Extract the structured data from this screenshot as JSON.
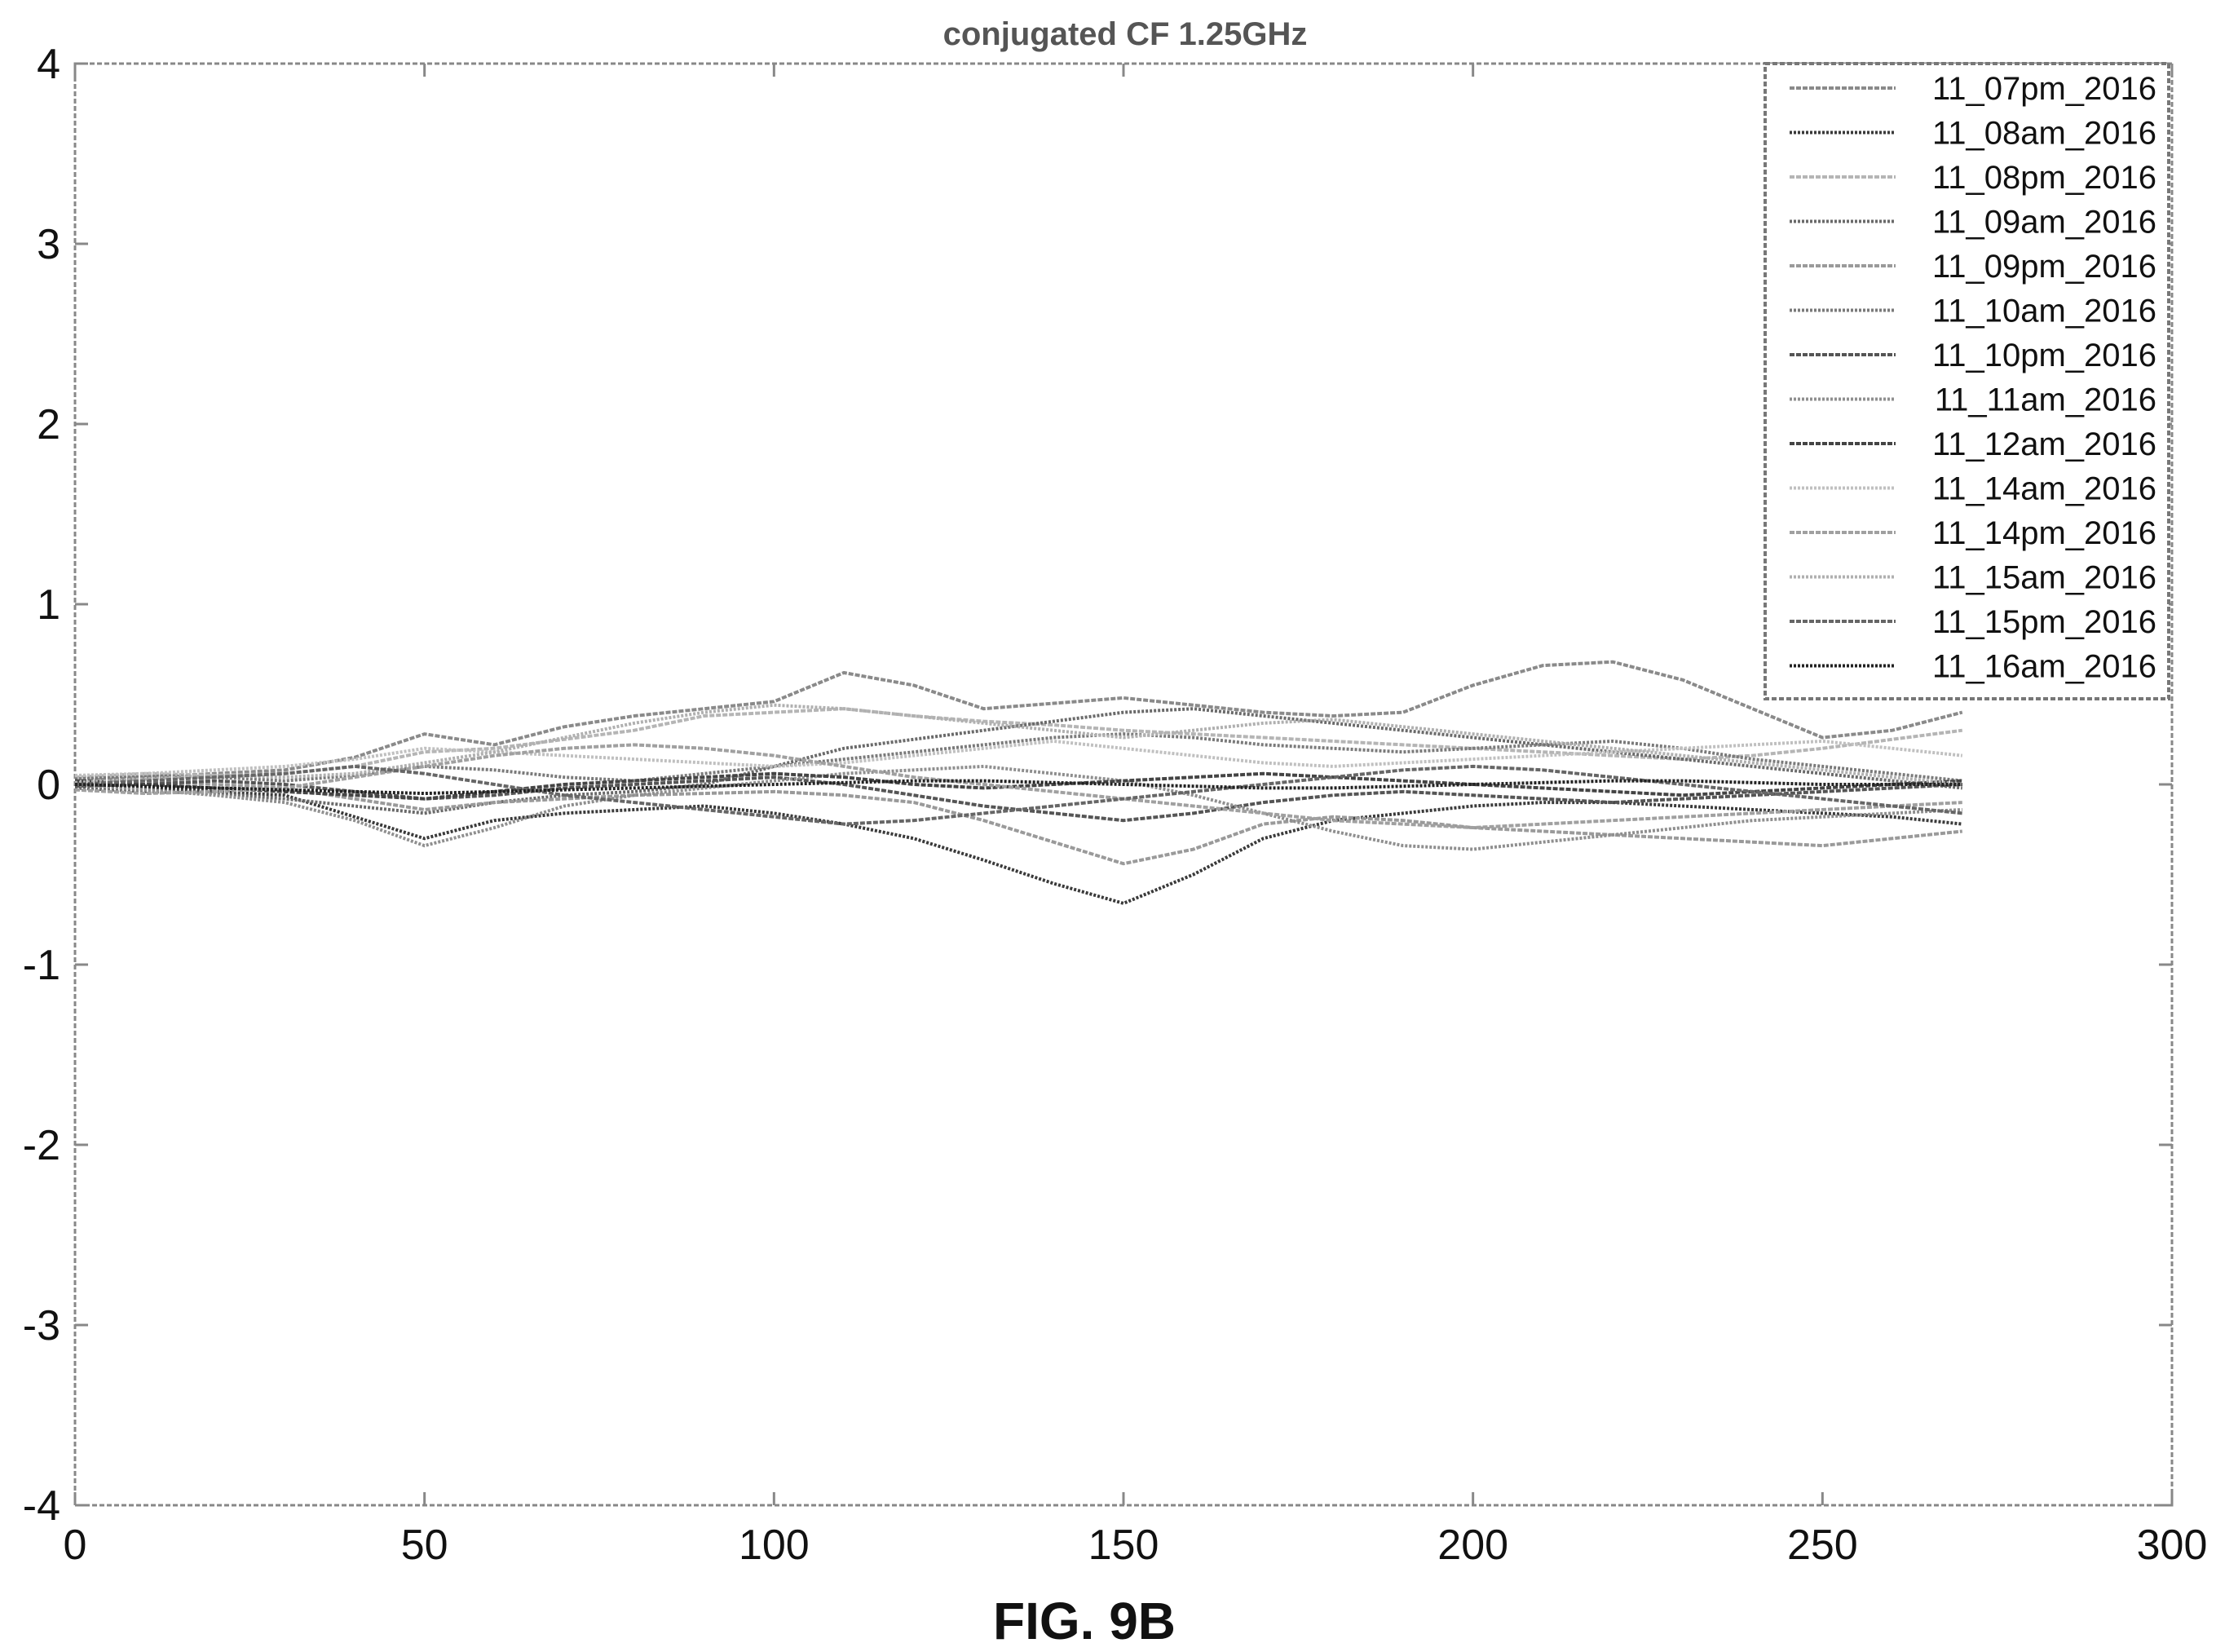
{
  "figure_label": "FIG. 9B",
  "chart_data": {
    "type": "line",
    "title": "conjugated CF 1.25GHz",
    "xlabel": "",
    "ylabel": "",
    "xlim": [
      0,
      300
    ],
    "ylim": [
      -4,
      4
    ],
    "xticks": [
      "0",
      "50",
      "100",
      "150",
      "200",
      "250",
      "300"
    ],
    "yticks": [
      "4",
      "3",
      "2",
      "1",
      "0",
      "-1",
      "-2",
      "-3",
      "-4"
    ],
    "grid": false,
    "legend_position": "top-right",
    "x": [
      0,
      10,
      20,
      30,
      40,
      50,
      60,
      70,
      80,
      90,
      100,
      110,
      120,
      130,
      140,
      150,
      160,
      170,
      180,
      190,
      200,
      210,
      220,
      230,
      240,
      250,
      260,
      270
    ],
    "series": [
      {
        "name": "11_07pm_2016",
        "color": "#8a8a8a",
        "values": [
          0.02,
          0.04,
          0.06,
          0.08,
          0.15,
          0.28,
          0.22,
          0.32,
          0.38,
          0.42,
          0.46,
          0.62,
          0.55,
          0.42,
          0.45,
          0.48,
          0.44,
          0.4,
          0.38,
          0.4,
          0.55,
          0.66,
          0.68,
          0.58,
          0.42,
          0.26,
          0.3,
          0.4
        ]
      },
      {
        "name": "11_08am_2016",
        "color": "#3a3a3a",
        "values": [
          0.0,
          -0.02,
          -0.04,
          -0.06,
          -0.18,
          -0.3,
          -0.2,
          -0.16,
          -0.14,
          -0.12,
          -0.16,
          -0.22,
          -0.3,
          -0.42,
          -0.55,
          -0.66,
          -0.5,
          -0.3,
          -0.2,
          -0.16,
          -0.12,
          -0.1,
          -0.1,
          -0.12,
          -0.14,
          -0.16,
          -0.18,
          -0.22
        ]
      },
      {
        "name": "11_08pm_2016",
        "color": "#b5b5b5",
        "values": [
          0.04,
          0.06,
          0.05,
          0.06,
          0.1,
          0.18,
          0.2,
          0.25,
          0.3,
          0.38,
          0.4,
          0.42,
          0.38,
          0.35,
          0.33,
          0.3,
          0.28,
          0.26,
          0.24,
          0.22,
          0.2,
          0.18,
          0.16,
          0.14,
          0.16,
          0.2,
          0.25,
          0.3
        ]
      },
      {
        "name": "11_09am_2016",
        "color": "#6a6a6a",
        "values": [
          -0.02,
          -0.04,
          -0.05,
          -0.08,
          -0.12,
          -0.16,
          -0.1,
          -0.06,
          -0.04,
          0.0,
          0.1,
          0.2,
          0.25,
          0.3,
          0.35,
          0.4,
          0.42,
          0.38,
          0.34,
          0.3,
          0.26,
          0.22,
          0.18,
          0.14,
          0.1,
          0.06,
          0.02,
          -0.02
        ]
      },
      {
        "name": "11_09pm_2016",
        "color": "#9a9a9a",
        "values": [
          0.01,
          0.02,
          0.0,
          -0.02,
          -0.08,
          -0.14,
          -0.1,
          -0.08,
          -0.06,
          -0.05,
          -0.04,
          -0.06,
          -0.1,
          -0.2,
          -0.32,
          -0.44,
          -0.36,
          -0.22,
          -0.18,
          -0.2,
          -0.24,
          -0.26,
          -0.28,
          -0.3,
          -0.32,
          -0.34,
          -0.3,
          -0.26
        ]
      },
      {
        "name": "11_10am_2016",
        "color": "#7a7a7a",
        "values": [
          0.03,
          0.05,
          0.04,
          0.02,
          0.05,
          0.1,
          0.08,
          0.04,
          0.02,
          0.06,
          0.1,
          0.14,
          0.18,
          0.22,
          0.26,
          0.28,
          0.26,
          0.22,
          0.2,
          0.18,
          0.2,
          0.22,
          0.24,
          0.2,
          0.14,
          0.1,
          0.06,
          0.02
        ]
      },
      {
        "name": "11_10pm_2016",
        "color": "#555555",
        "values": [
          -0.01,
          0.0,
          0.02,
          0.0,
          -0.04,
          -0.08,
          -0.06,
          -0.02,
          0.0,
          0.02,
          0.04,
          0.0,
          -0.06,
          -0.12,
          -0.16,
          -0.2,
          -0.16,
          -0.1,
          -0.06,
          -0.04,
          -0.06,
          -0.08,
          -0.1,
          -0.08,
          -0.06,
          -0.04,
          -0.02,
          0.0
        ]
      },
      {
        "name": "11_11am_2016",
        "color": "#8f8f8f",
        "values": [
          0.0,
          -0.03,
          -0.06,
          -0.1,
          -0.2,
          -0.34,
          -0.24,
          -0.12,
          -0.06,
          -0.02,
          0.02,
          0.06,
          0.08,
          0.1,
          0.06,
          0.02,
          -0.06,
          -0.16,
          -0.26,
          -0.34,
          -0.36,
          -0.32,
          -0.28,
          -0.24,
          -0.2,
          -0.18,
          -0.16,
          -0.14
        ]
      },
      {
        "name": "11_12am_2016",
        "color": "#444444",
        "values": [
          0.02,
          0.0,
          -0.02,
          -0.04,
          -0.06,
          -0.08,
          -0.04,
          0.0,
          0.02,
          0.04,
          0.06,
          0.04,
          0.0,
          -0.02,
          0.0,
          0.02,
          0.04,
          0.06,
          0.04,
          0.02,
          0.0,
          -0.02,
          -0.04,
          -0.06,
          -0.04,
          -0.02,
          0.0,
          0.02
        ]
      },
      {
        "name": "11_14am_2016",
        "color": "#c0c0c0",
        "values": [
          0.05,
          0.06,
          0.08,
          0.1,
          0.14,
          0.2,
          0.18,
          0.16,
          0.14,
          0.12,
          0.1,
          0.12,
          0.16,
          0.2,
          0.24,
          0.2,
          0.16,
          0.12,
          0.1,
          0.12,
          0.14,
          0.16,
          0.18,
          0.2,
          0.22,
          0.24,
          0.2,
          0.16
        ]
      },
      {
        "name": "11_14pm_2016",
        "color": "#a0a0a0",
        "values": [
          -0.03,
          -0.05,
          -0.04,
          -0.02,
          0.04,
          0.1,
          0.16,
          0.2,
          0.22,
          0.2,
          0.16,
          0.1,
          0.04,
          0.0,
          -0.04,
          -0.08,
          -0.12,
          -0.16,
          -0.2,
          -0.22,
          -0.24,
          -0.22,
          -0.2,
          -0.18,
          -0.16,
          -0.14,
          -0.12,
          -0.1
        ]
      },
      {
        "name": "11_15am_2016",
        "color": "#b0b0b0",
        "values": [
          0.01,
          0.03,
          0.05,
          0.04,
          0.06,
          0.12,
          0.18,
          0.26,
          0.34,
          0.4,
          0.44,
          0.42,
          0.38,
          0.34,
          0.3,
          0.26,
          0.3,
          0.34,
          0.36,
          0.32,
          0.28,
          0.24,
          0.2,
          0.16,
          0.12,
          0.08,
          0.04,
          0.0
        ]
      },
      {
        "name": "11_15pm_2016",
        "color": "#666666",
        "values": [
          0.0,
          0.02,
          0.04,
          0.06,
          0.1,
          0.06,
          0.0,
          -0.06,
          -0.1,
          -0.14,
          -0.18,
          -0.22,
          -0.2,
          -0.16,
          -0.12,
          -0.08,
          -0.04,
          0.0,
          0.04,
          0.08,
          0.1,
          0.08,
          0.04,
          0.0,
          -0.04,
          -0.08,
          -0.12,
          -0.16
        ]
      },
      {
        "name": "11_16am_2016",
        "color": "#222222",
        "values": [
          0.0,
          -0.01,
          -0.02,
          -0.03,
          -0.04,
          -0.05,
          -0.04,
          -0.03,
          -0.02,
          -0.01,
          0.0,
          0.01,
          0.02,
          0.02,
          0.01,
          0.0,
          -0.01,
          -0.02,
          -0.02,
          -0.01,
          0.0,
          0.01,
          0.02,
          0.02,
          0.01,
          0.0,
          0.0,
          0.0
        ]
      }
    ]
  }
}
